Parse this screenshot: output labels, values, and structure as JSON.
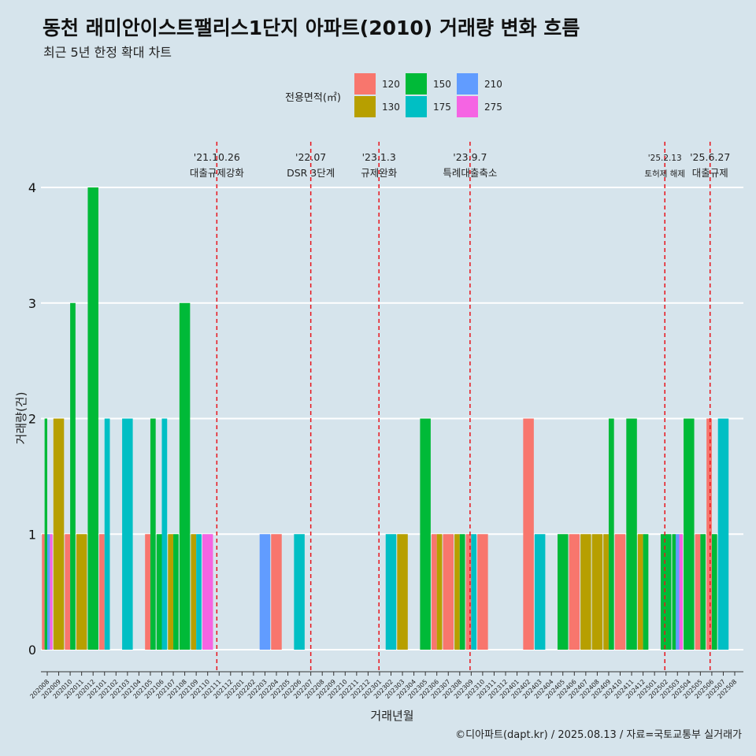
{
  "header": {
    "title": "동천 래미안이스트팰리스1단지 아파트(2010) 거래량 변화 흐름",
    "subtitle": "최근 5년 한정 확대 차트"
  },
  "footer": {
    "credit": "©디아파트(dapt.kr) / 2025.08.13 / 자료=국토교통부 실거래가"
  },
  "legend": {
    "title": "전용면적(㎡)",
    "position": "top-center"
  },
  "colors": {
    "background": "#d6e4ec",
    "grid": "#ffffff",
    "event_line": "#e8141c",
    "120": "#f8766d",
    "130": "#b79f00",
    "150": "#00ba38",
    "175": "#00bfc4",
    "210": "#619cff",
    "275": "#f564e3"
  },
  "chart_data": {
    "type": "bar",
    "title": "동천 래미안이스트팰리스1단지 아파트(2010) 거래량 변화 흐름",
    "subtitle": "최근 5년 한정 확대 차트",
    "xlabel": "거래년월",
    "ylabel": "거래량(건)",
    "ylim": [
      0,
      4
    ],
    "yticks": [
      0,
      1,
      2,
      3,
      4
    ],
    "grid": true,
    "bar_layout": "dodged by area within each month",
    "categories": [
      "202008",
      "202009",
      "202010",
      "202011",
      "202012",
      "202101",
      "202102",
      "202103",
      "202104",
      "202105",
      "202106",
      "202107",
      "202108",
      "202109",
      "202110",
      "202111",
      "202112",
      "202201",
      "202202",
      "202203",
      "202204",
      "202205",
      "202206",
      "202207",
      "202208",
      "202209",
      "202210",
      "202211",
      "202212",
      "202301",
      "202302",
      "202303",
      "202304",
      "202305",
      "202306",
      "202307",
      "202308",
      "202309",
      "202310",
      "202311",
      "202312",
      "202401",
      "202402",
      "202403",
      "202404",
      "202405",
      "202406",
      "202407",
      "202408",
      "202409",
      "202410",
      "202411",
      "202412",
      "202501",
      "202502",
      "202503",
      "202504",
      "202505",
      "202506",
      "202507",
      "202508"
    ],
    "series": [
      {
        "name": "120",
        "color": "#f8766d",
        "values": [
          1,
          0,
          1,
          0,
          0,
          1,
          0,
          0,
          0,
          1,
          0,
          0,
          0,
          0,
          0,
          0,
          0,
          0,
          0,
          0,
          1,
          0,
          0,
          0,
          0,
          0,
          0,
          0,
          0,
          0,
          0,
          0,
          0,
          0,
          1,
          1,
          0,
          1,
          1,
          0,
          0,
          0,
          2,
          0,
          0,
          0,
          1,
          0,
          0,
          0,
          1,
          0,
          0,
          0,
          0,
          0,
          0,
          1,
          2,
          0,
          0
        ]
      },
      {
        "name": "130",
        "color": "#b79f00",
        "values": [
          0,
          2,
          0,
          1,
          0,
          0,
          0,
          0,
          0,
          0,
          0,
          1,
          0,
          1,
          0,
          0,
          0,
          0,
          0,
          0,
          0,
          0,
          0,
          0,
          0,
          0,
          0,
          0,
          0,
          0,
          0,
          1,
          0,
          0,
          1,
          0,
          1,
          0,
          0,
          0,
          0,
          0,
          0,
          0,
          0,
          0,
          0,
          1,
          1,
          1,
          0,
          0,
          1,
          0,
          0,
          0,
          0,
          0,
          0,
          0,
          0
        ]
      },
      {
        "name": "150",
        "color": "#00ba38",
        "values": [
          2,
          0,
          3,
          0,
          4,
          0,
          0,
          0,
          0,
          2,
          1,
          1,
          3,
          0,
          0,
          0,
          0,
          0,
          0,
          0,
          0,
          0,
          0,
          0,
          0,
          0,
          0,
          0,
          0,
          0,
          0,
          0,
          0,
          2,
          0,
          0,
          1,
          0,
          0,
          0,
          0,
          0,
          0,
          0,
          0,
          1,
          0,
          0,
          0,
          2,
          0,
          2,
          1,
          0,
          1,
          1,
          2,
          1,
          1,
          0,
          0
        ]
      },
      {
        "name": "175",
        "color": "#00bfc4",
        "values": [
          0,
          0,
          0,
          0,
          0,
          2,
          0,
          2,
          0,
          0,
          2,
          0,
          0,
          1,
          0,
          0,
          0,
          0,
          0,
          0,
          0,
          0,
          1,
          0,
          0,
          0,
          0,
          0,
          0,
          0,
          1,
          0,
          0,
          0,
          0,
          0,
          0,
          1,
          0,
          0,
          0,
          0,
          0,
          1,
          0,
          0,
          0,
          0,
          0,
          0,
          0,
          0,
          0,
          0,
          0,
          0,
          0,
          0,
          0,
          2,
          0
        ]
      },
      {
        "name": "210",
        "color": "#619cff",
        "values": [
          1,
          0,
          0,
          0,
          0,
          0,
          0,
          0,
          0,
          0,
          0,
          0,
          0,
          0,
          0,
          0,
          0,
          0,
          0,
          1,
          0,
          0,
          0,
          0,
          0,
          0,
          0,
          0,
          0,
          0,
          0,
          0,
          0,
          0,
          0,
          0,
          0,
          0,
          0,
          0,
          0,
          0,
          0,
          0,
          0,
          0,
          0,
          0,
          0,
          0,
          0,
          0,
          0,
          0,
          0,
          1,
          0,
          0,
          0,
          0,
          0
        ]
      },
      {
        "name": "275",
        "color": "#f564e3",
        "values": [
          1,
          0,
          0,
          0,
          0,
          0,
          0,
          0,
          0,
          0,
          0,
          0,
          0,
          0,
          1,
          0,
          0,
          0,
          0,
          0,
          0,
          0,
          0,
          0,
          0,
          0,
          0,
          0,
          0,
          0,
          0,
          0,
          0,
          0,
          0,
          0,
          0,
          0,
          0,
          0,
          0,
          0,
          0,
          0,
          0,
          0,
          0,
          0,
          0,
          0,
          0,
          0,
          0,
          0,
          0,
          1,
          0,
          0,
          0,
          0,
          0
        ]
      }
    ],
    "annotations": [
      {
        "date": "'21.10.26",
        "text": "대출규제강화",
        "month_index": 14.8
      },
      {
        "date": "'22.07",
        "text": "DSR 3단계",
        "month_index": 23.0
      },
      {
        "date": "'23.1.3",
        "text": "규제완화",
        "month_index": 28.95
      },
      {
        "date": "'23.9.7",
        "text": "특례대출축소",
        "month_index": 36.9
      },
      {
        "date": "'25.2.13",
        "text": "토허제 해제",
        "month_index": 53.9
      },
      {
        "date": "'25.6.27",
        "text": "대출규제",
        "month_index": 57.85
      }
    ]
  }
}
